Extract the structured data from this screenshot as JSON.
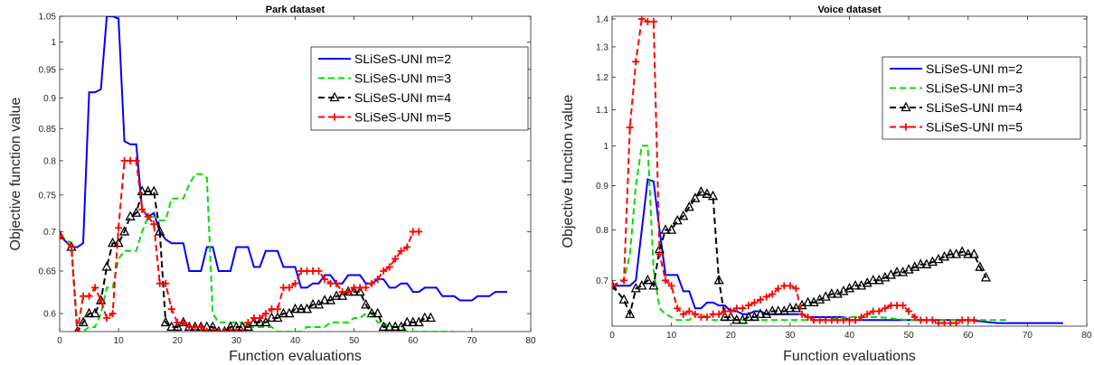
{
  "chart_data": [
    {
      "type": "line",
      "title": "Park dataset",
      "xlabel": "Function evaluations",
      "ylabel": "Objective function value",
      "xlim": [
        0,
        80
      ],
      "ylim": [
        0.58,
        1.05
      ],
      "xticks": [
        0,
        10,
        20,
        30,
        40,
        50,
        60,
        70,
        80
      ],
      "yticks": [
        0.6,
        0.65,
        0.7,
        0.75,
        0.8,
        0.85,
        0.9,
        0.95,
        1,
        1.05
      ],
      "yscale": "log",
      "legend_position": "top-right",
      "series": [
        {
          "name": "SLiSeS-UNI m=2",
          "color": "#0000ff",
          "dash": "solid",
          "marker": "none",
          "x": [
            0,
            2,
            3,
            4,
            5,
            6,
            7,
            8,
            9,
            10,
            11,
            12,
            13,
            14,
            15,
            16,
            17,
            18,
            19,
            20,
            21,
            22,
            23,
            24,
            25,
            26,
            27,
            28,
            29,
            30,
            31,
            32,
            33,
            34,
            35,
            36,
            37,
            38,
            39,
            40,
            41,
            42,
            43,
            44,
            45,
            46,
            47,
            48,
            49,
            50,
            51,
            52,
            53,
            54,
            55,
            56,
            57,
            58,
            59,
            60,
            61,
            62,
            63,
            64,
            65,
            66,
            67,
            68,
            69,
            70,
            71,
            72,
            73,
            74,
            75,
            76
          ],
          "y": [
            0.695,
            0.68,
            0.68,
            0.685,
            0.91,
            0.91,
            0.915,
            1.05,
            1.05,
            1.045,
            0.83,
            0.825,
            0.825,
            0.73,
            0.72,
            0.725,
            0.7,
            0.69,
            0.685,
            0.685,
            0.685,
            0.65,
            0.65,
            0.65,
            0.68,
            0.68,
            0.65,
            0.65,
            0.65,
            0.68,
            0.68,
            0.68,
            0.655,
            0.655,
            0.675,
            0.675,
            0.675,
            0.655,
            0.655,
            0.655,
            0.63,
            0.63,
            0.635,
            0.635,
            0.645,
            0.645,
            0.635,
            0.635,
            0.645,
            0.645,
            0.645,
            0.635,
            0.635,
            0.64,
            0.64,
            0.63,
            0.63,
            0.635,
            0.635,
            0.625,
            0.625,
            0.63,
            0.63,
            0.63,
            0.62,
            0.62,
            0.62,
            0.615,
            0.615,
            0.615,
            0.62,
            0.62,
            0.62,
            0.625,
            0.625,
            0.625
          ]
        },
        {
          "name": "SLiSeS-UNI m=3",
          "color": "#00dd00",
          "dash": "dashed",
          "marker": "none",
          "x": [
            0,
            2,
            3,
            4,
            5,
            6,
            7,
            8,
            9,
            10,
            11,
            12,
            13,
            14,
            15,
            16,
            17,
            18,
            19,
            20,
            21,
            22,
            23,
            24,
            25,
            26,
            27,
            28,
            29,
            30,
            31,
            32,
            33,
            34,
            35,
            36,
            37,
            38,
            39,
            40,
            41,
            42,
            43,
            44,
            45,
            46,
            47,
            48,
            49,
            50,
            51,
            52,
            53,
            54,
            55,
            56,
            57,
            58,
            59,
            60,
            61,
            62,
            63,
            64,
            65,
            66,
            67
          ],
          "y": [
            0.695,
            0.685,
            0.58,
            0.58,
            0.585,
            0.585,
            0.6,
            0.63,
            0.63,
            0.665,
            0.675,
            0.675,
            0.675,
            0.7,
            0.72,
            0.72,
            0.715,
            0.715,
            0.745,
            0.745,
            0.745,
            0.765,
            0.78,
            0.78,
            0.775,
            0.6,
            0.59,
            0.59,
            0.59,
            0.59,
            0.59,
            0.585,
            0.585,
            0.585,
            0.585,
            0.585,
            0.58,
            0.58,
            0.58,
            0.58,
            0.58,
            0.585,
            0.585,
            0.585,
            0.585,
            0.59,
            0.59,
            0.59,
            0.59,
            0.595,
            0.595,
            0.6,
            0.6,
            0.59,
            0.59,
            0.585,
            0.585,
            0.585,
            0.58,
            0.58,
            0.58,
            0.58,
            0.58,
            0.58,
            0.58,
            0.58,
            0.58
          ]
        },
        {
          "name": "SLiSeS-UNI m=4",
          "color": "#000000",
          "dash": "dashed",
          "marker": "triangle",
          "x": [
            0,
            2,
            3,
            4,
            5,
            6,
            7,
            8,
            9,
            10,
            11,
            12,
            13,
            14,
            15,
            16,
            17,
            18,
            19,
            20,
            21,
            22,
            23,
            24,
            25,
            26,
            27,
            28,
            29,
            30,
            31,
            32,
            33,
            34,
            35,
            36,
            37,
            38,
            39,
            40,
            41,
            42,
            43,
            44,
            45,
            46,
            47,
            48,
            49,
            50,
            51,
            52,
            53,
            54,
            55,
            56,
            57,
            58,
            59,
            60,
            61,
            62,
            63
          ],
          "y": [
            0.695,
            0.68,
            0.58,
            0.59,
            0.6,
            0.6,
            0.615,
            0.655,
            0.685,
            0.685,
            0.7,
            0.72,
            0.725,
            0.755,
            0.755,
            0.755,
            0.7,
            0.59,
            0.585,
            0.585,
            0.59,
            0.585,
            0.585,
            0.585,
            0.585,
            0.585,
            0.58,
            0.58,
            0.585,
            0.585,
            0.585,
            0.585,
            0.59,
            0.59,
            0.59,
            0.595,
            0.595,
            0.6,
            0.6,
            0.605,
            0.605,
            0.605,
            0.61,
            0.61,
            0.615,
            0.615,
            0.62,
            0.62,
            0.625,
            0.625,
            0.625,
            0.61,
            0.6,
            0.6,
            0.585,
            0.585,
            0.585,
            0.585,
            0.59,
            0.59,
            0.59,
            0.595,
            0.595
          ]
        },
        {
          "name": "SLiSeS-UNI m=5",
          "color": "#ff0000",
          "dash": "dashed",
          "marker": "plus",
          "x": [
            0,
            2,
            3,
            4,
            5,
            6,
            7,
            8,
            9,
            10,
            11,
            12,
            13,
            14,
            15,
            16,
            17,
            18,
            19,
            20,
            21,
            22,
            23,
            24,
            25,
            26,
            27,
            28,
            29,
            30,
            31,
            32,
            33,
            34,
            35,
            36,
            37,
            38,
            39,
            40,
            41,
            42,
            43,
            44,
            45,
            46,
            47,
            48,
            49,
            50,
            51,
            52,
            53,
            54,
            55,
            56,
            57,
            58,
            59,
            60,
            61
          ],
          "y": [
            0.695,
            0.68,
            0.58,
            0.62,
            0.62,
            0.63,
            0.615,
            0.595,
            0.6,
            0.705,
            0.8,
            0.8,
            0.8,
            0.73,
            0.72,
            0.71,
            0.635,
            0.635,
            0.605,
            0.59,
            0.59,
            0.585,
            0.585,
            0.585,
            0.58,
            0.58,
            0.58,
            0.58,
            0.58,
            0.58,
            0.58,
            0.59,
            0.595,
            0.595,
            0.6,
            0.605,
            0.605,
            0.63,
            0.63,
            0.635,
            0.65,
            0.65,
            0.65,
            0.65,
            0.64,
            0.635,
            0.635,
            0.625,
            0.625,
            0.63,
            0.63,
            0.63,
            0.635,
            0.64,
            0.65,
            0.655,
            0.665,
            0.675,
            0.68,
            0.7,
            0.7
          ]
        }
      ]
    },
    {
      "type": "line",
      "title": "Voice dataset",
      "xlabel": "Function evaluations",
      "ylabel": "Objective function value",
      "xlim": [
        0,
        80
      ],
      "ylim": [
        0.62,
        1.41
      ],
      "xticks": [
        0,
        10,
        20,
        30,
        40,
        50,
        60,
        70,
        80
      ],
      "yticks": [
        0.7,
        0.8,
        0.9,
        1,
        1.1,
        1.2,
        1.3,
        1.4
      ],
      "yscale": "log",
      "legend_position": "top-right",
      "series": [
        {
          "name": "SLiSeS-UNI m=2",
          "color": "#0000ff",
          "dash": "solid",
          "marker": "none",
          "x": [
            0,
            2,
            3,
            4,
            5,
            6,
            7,
            8,
            9,
            10,
            11,
            12,
            13,
            14,
            15,
            16,
            17,
            18,
            19,
            20,
            21,
            22,
            23,
            24,
            25,
            26,
            27,
            28,
            29,
            30,
            31,
            32,
            33,
            34,
            35,
            36,
            37,
            38,
            39,
            40,
            45,
            50,
            55,
            60,
            65,
            70,
            76
          ],
          "y": [
            0.69,
            0.69,
            0.69,
            0.7,
            0.8,
            0.915,
            0.91,
            0.8,
            0.71,
            0.71,
            0.71,
            0.68,
            0.68,
            0.65,
            0.65,
            0.66,
            0.66,
            0.655,
            0.655,
            0.645,
            0.645,
            0.64,
            0.64,
            0.645,
            0.645,
            0.64,
            0.64,
            0.64,
            0.64,
            0.64,
            0.64,
            0.64,
            0.635,
            0.635,
            0.635,
            0.635,
            0.635,
            0.635,
            0.635,
            0.63,
            0.63,
            0.63,
            0.63,
            0.63,
            0.625,
            0.625,
            0.625
          ]
        },
        {
          "name": "SLiSeS-UNI m=3",
          "color": "#00dd00",
          "dash": "dashed",
          "marker": "none",
          "x": [
            0,
            2,
            3,
            4,
            5,
            6,
            7,
            8,
            9,
            10,
            11,
            12,
            13,
            14,
            15,
            16,
            17,
            18,
            19,
            20,
            25,
            30,
            35,
            40,
            45,
            50,
            55,
            60,
            65,
            67
          ],
          "y": [
            0.69,
            0.7,
            0.75,
            0.9,
            1.0,
            1.0,
            0.72,
            0.65,
            0.64,
            0.635,
            0.63,
            0.63,
            0.63,
            0.64,
            0.64,
            0.635,
            0.63,
            0.63,
            0.63,
            0.63,
            0.63,
            0.63,
            0.63,
            0.635,
            0.635,
            0.63,
            0.63,
            0.63,
            0.63,
            0.63
          ]
        },
        {
          "name": "SLiSeS-UNI m=4",
          "color": "#000000",
          "dash": "dashed",
          "marker": "triangle",
          "x": [
            0,
            2,
            3,
            4,
            5,
            6,
            7,
            8,
            9,
            10,
            11,
            12,
            13,
            14,
            15,
            16,
            17,
            18,
            19,
            20,
            21,
            22,
            23,
            24,
            25,
            26,
            27,
            28,
            29,
            30,
            31,
            32,
            33,
            34,
            35,
            36,
            37,
            38,
            39,
            40,
            41,
            42,
            43,
            44,
            45,
            46,
            47,
            48,
            49,
            50,
            51,
            52,
            53,
            54,
            55,
            56,
            57,
            58,
            59,
            60,
            61,
            62,
            63
          ],
          "y": [
            0.69,
            0.665,
            0.64,
            0.685,
            0.69,
            0.7,
            0.69,
            0.76,
            0.8,
            0.8,
            0.82,
            0.83,
            0.85,
            0.87,
            0.885,
            0.88,
            0.875,
            0.7,
            0.635,
            0.635,
            0.63,
            0.63,
            0.635,
            0.635,
            0.64,
            0.64,
            0.645,
            0.645,
            0.645,
            0.65,
            0.65,
            0.655,
            0.66,
            0.66,
            0.665,
            0.67,
            0.675,
            0.675,
            0.68,
            0.685,
            0.69,
            0.69,
            0.695,
            0.7,
            0.7,
            0.705,
            0.71,
            0.715,
            0.715,
            0.72,
            0.725,
            0.73,
            0.73,
            0.735,
            0.74,
            0.745,
            0.75,
            0.75,
            0.755,
            0.75,
            0.75,
            0.725,
            0.705
          ]
        },
        {
          "name": "SLiSeS-UNI m=5",
          "color": "#ff0000",
          "dash": "dashed",
          "marker": "plus",
          "x": [
            0,
            2,
            3,
            4,
            5,
            6,
            7,
            8,
            9,
            10,
            11,
            12,
            13,
            14,
            15,
            16,
            17,
            18,
            19,
            20,
            21,
            22,
            23,
            24,
            25,
            26,
            27,
            28,
            29,
            30,
            31,
            32,
            33,
            34,
            35,
            36,
            37,
            38,
            39,
            40,
            41,
            42,
            43,
            44,
            45,
            46,
            47,
            48,
            49,
            50,
            51,
            52,
            53,
            54,
            55,
            56,
            57,
            58,
            59,
            60,
            61
          ],
          "y": [
            0.69,
            0.7,
            1.05,
            1.25,
            1.4,
            1.39,
            1.39,
            0.75,
            0.7,
            0.69,
            0.65,
            0.64,
            0.645,
            0.64,
            0.635,
            0.635,
            0.64,
            0.64,
            0.645,
            0.645,
            0.65,
            0.65,
            0.655,
            0.66,
            0.665,
            0.67,
            0.675,
            0.685,
            0.69,
            0.69,
            0.685,
            0.64,
            0.635,
            0.63,
            0.63,
            0.63,
            0.63,
            0.63,
            0.63,
            0.63,
            0.63,
            0.635,
            0.64,
            0.645,
            0.645,
            0.65,
            0.655,
            0.655,
            0.655,
            0.645,
            0.635,
            0.63,
            0.63,
            0.63,
            0.625,
            0.625,
            0.625,
            0.625,
            0.63,
            0.63,
            0.63
          ]
        }
      ]
    }
  ]
}
